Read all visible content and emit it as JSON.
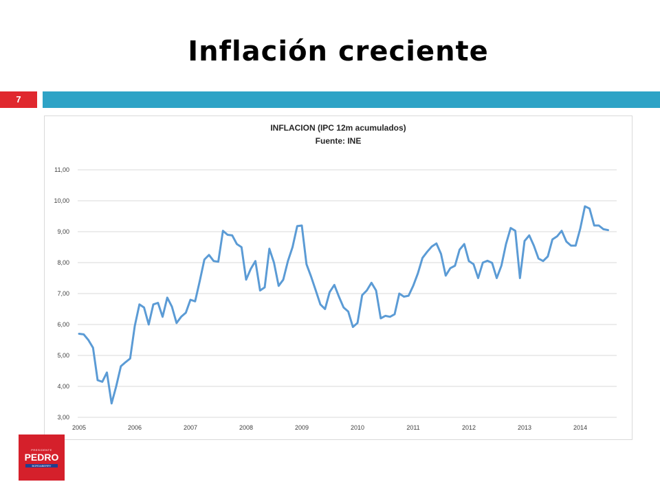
{
  "slide": {
    "title": "Inflación creciente",
    "page_number": "7"
  },
  "logo": {
    "line1": "PRESIDENTE",
    "line2": "PEDRO",
    "line3": "BORDABERRY"
  },
  "colors": {
    "accent_bar": "#2ea3c6",
    "badge": "#e0282e",
    "line": "#5b9bd5",
    "logo": "#d5202b"
  },
  "chart_data": {
    "type": "line",
    "title": "INFLACION  (IPC 12m acumulados)",
    "subtitle": "Fuente: INE",
    "xlabel": "",
    "ylabel": "",
    "ylim": [
      3,
      11
    ],
    "yticks": [
      "3,00",
      "4,00",
      "5,00",
      "6,00",
      "7,00",
      "8,00",
      "9,00",
      "10,00",
      "11,00"
    ],
    "xticks": [
      "2005",
      "2006",
      "2007",
      "2008",
      "2009",
      "2010",
      "2011",
      "2012",
      "2013",
      "2014"
    ],
    "x_start_year": 2005,
    "grid": true,
    "legend": "none",
    "series": [
      {
        "values": [
          5.7,
          5.68,
          5.5,
          5.25,
          4.2,
          4.15,
          4.45,
          3.45,
          4.0,
          4.65,
          4.78,
          4.9,
          5.95,
          6.65,
          6.55,
          6.0,
          6.65,
          6.7,
          6.25,
          6.87,
          6.58,
          6.05,
          6.25,
          6.38,
          6.8,
          6.75,
          7.4,
          8.1,
          8.25,
          8.05,
          8.03,
          9.03,
          8.9,
          8.88,
          8.6,
          8.5,
          7.45,
          7.8,
          8.05,
          7.1,
          7.2,
          8.45,
          8.0,
          7.25,
          7.45,
          8.05,
          8.5,
          9.18,
          9.2,
          7.95,
          7.55,
          7.1,
          6.65,
          6.5,
          7.05,
          7.28,
          6.9,
          6.55,
          6.42,
          5.92,
          6.05,
          6.95,
          7.1,
          7.35,
          7.1,
          6.2,
          6.28,
          6.25,
          6.33,
          7.0,
          6.9,
          6.93,
          7.25,
          7.65,
          8.15,
          8.35,
          8.52,
          8.62,
          8.28,
          7.58,
          7.82,
          7.9,
          8.42,
          8.6,
          8.05,
          7.95,
          7.5,
          8.0,
          8.06,
          7.99,
          7.5,
          7.9,
          8.6,
          9.12,
          9.03,
          7.5,
          8.7,
          8.88,
          8.55,
          8.13,
          8.05,
          8.2,
          8.75,
          8.85,
          9.03,
          8.68,
          8.55,
          8.55,
          9.1,
          9.82,
          9.75,
          9.2,
          9.2,
          9.08,
          9.05
        ]
      }
    ]
  }
}
